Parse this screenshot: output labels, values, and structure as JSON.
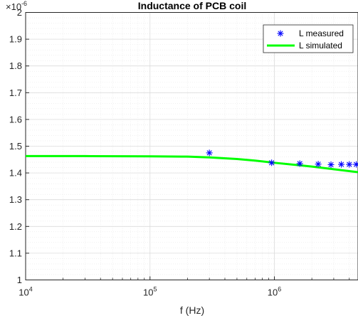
{
  "chart_data": {
    "type": "line",
    "title": "Inductance of PCB coil",
    "xlabel": "f (Hz)",
    "ylabel": "",
    "x_scale": "log",
    "xlim": [
      10000,
      4700000
    ],
    "ylim": [
      1e-06,
      2e-06
    ],
    "y_multiplier_label": "×10",
    "y_multiplier_exponent": "-6",
    "x_ticks": [
      {
        "value": 10000,
        "base": "10",
        "exp": "4"
      },
      {
        "value": 100000,
        "base": "10",
        "exp": "5"
      },
      {
        "value": 1000000,
        "base": "10",
        "exp": "6"
      }
    ],
    "y_ticks": [
      {
        "value": 1e-06,
        "label": "1"
      },
      {
        "value": 1.1e-06,
        "label": "1.1"
      },
      {
        "value": 1.2e-06,
        "label": "1.2"
      },
      {
        "value": 1.3e-06,
        "label": "1.3"
      },
      {
        "value": 1.4e-06,
        "label": "1.4"
      },
      {
        "value": 1.5e-06,
        "label": "1.5"
      },
      {
        "value": 1.6e-06,
        "label": "1.6"
      },
      {
        "value": 1.7e-06,
        "label": "1.7"
      },
      {
        "value": 1.8e-06,
        "label": "1.8"
      },
      {
        "value": 1.9e-06,
        "label": "1.9"
      },
      {
        "value": 2e-06,
        "label": "2"
      }
    ],
    "grid": true,
    "minor_grid": true,
    "legend_position": "top-right",
    "series": [
      {
        "name": "L measured",
        "kind": "marker",
        "marker": "*",
        "color": "#0000ff",
        "x": [
          300000,
          950000,
          1600000,
          2250000,
          2850000,
          3450000,
          4000000,
          4550000
        ],
        "y": [
          1.475e-06,
          1.438e-06,
          1.435e-06,
          1.433e-06,
          1.431e-06,
          1.432e-06,
          1.432e-06,
          1.432e-06
        ]
      },
      {
        "name": "L simulated",
        "kind": "line",
        "color": "#00ff00",
        "x": [
          10000,
          30000,
          100000,
          200000,
          300000,
          500000,
          700000,
          1000000,
          1500000,
          2000000,
          3000000,
          4700000
        ],
        "y": [
          1.463e-06,
          1.463e-06,
          1.462e-06,
          1.461e-06,
          1.458e-06,
          1.452e-06,
          1.446e-06,
          1.438e-06,
          1.43e-06,
          1.424e-06,
          1.414e-06,
          1.403e-06
        ]
      }
    ]
  }
}
